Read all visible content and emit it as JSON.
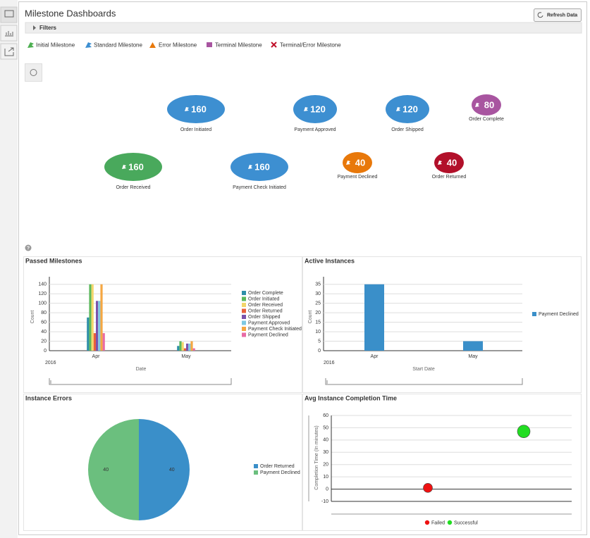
{
  "header": {
    "title": "Milestone Dashboards",
    "refresh_button": "Refresh Data",
    "filters": "Filters"
  },
  "milestone_legend": [
    {
      "label": "Initial Milestone",
      "color": "#4caf50"
    },
    {
      "label": "Standard Milestone",
      "color": "#3d8fd1"
    },
    {
      "label": "Error Milestone",
      "color": "#e8780a"
    },
    {
      "label": "Terminal Milestone",
      "color": "#a855a0"
    },
    {
      "label": "Terminal/Error Milestone",
      "color": "#c0102a"
    }
  ],
  "milestones": [
    {
      "label": "Order Initiated",
      "count": 160,
      "color": "#3d8fd1"
    },
    {
      "label": "Payment Approved",
      "count": 120,
      "color": "#3d8fd1"
    },
    {
      "label": "Order Shipped",
      "count": 120,
      "color": "#3d8fd1"
    },
    {
      "label": "Order Complete",
      "count": 80,
      "color": "#a855a0"
    },
    {
      "label": "Order Received",
      "count": 160,
      "color": "#49a95c"
    },
    {
      "label": "Payment Check Initiated",
      "count": 160,
      "color": "#3d8fd1"
    },
    {
      "label": "Payment Declined",
      "count": 40,
      "color": "#e8780a"
    },
    {
      "label": "Order Returned",
      "count": 40,
      "color": "#b2102a"
    }
  ],
  "help_icon": "?",
  "chart_data": [
    {
      "type": "bar",
      "title": "Passed Milestones",
      "categories": [
        "Apr",
        "May"
      ],
      "x_sublabel": "2016",
      "xlabel": "Date",
      "ylabel": "Count",
      "ylim": [
        0,
        150
      ],
      "yticks": [
        0,
        20,
        40,
        60,
        80,
        100,
        120,
        140
      ],
      "grid": true,
      "series": [
        {
          "name": "Order Complete",
          "color": "#2e8fa8",
          "values": [
            70,
            10
          ]
        },
        {
          "name": "Order Initiated",
          "color": "#5cb85c",
          "values": [
            140,
            20
          ]
        },
        {
          "name": "Order Received",
          "color": "#f3d66b",
          "values": [
            140,
            18
          ]
        },
        {
          "name": "Order Returned",
          "color": "#e8603c",
          "values": [
            37,
            5
          ]
        },
        {
          "name": "Order Shipped",
          "color": "#7b52ab",
          "values": [
            105,
            15
          ]
        },
        {
          "name": "Payment Approved",
          "color": "#7ec8e3",
          "values": [
            105,
            15
          ]
        },
        {
          "name": "Payment Check Initiated",
          "color": "#f5a742",
          "values": [
            140,
            20
          ]
        },
        {
          "name": "Payment Declined",
          "color": "#e86ba5",
          "values": [
            37,
            5
          ]
        }
      ]
    },
    {
      "type": "bar",
      "title": "Active Instances",
      "categories": [
        "Apr",
        "May"
      ],
      "x_sublabel": "2016",
      "xlabel": "Start Date",
      "ylabel": "Count",
      "ylim": [
        0,
        37.5
      ],
      "yticks": [
        0,
        5,
        10,
        15,
        20,
        25,
        30,
        35
      ],
      "grid": true,
      "series": [
        {
          "name": "Payment Declined",
          "color": "#3a8fc9",
          "values": [
            35,
            5
          ]
        }
      ]
    },
    {
      "type": "pie",
      "title": "Instance Errors",
      "categories": [
        "Order Returned",
        "Payment Declined"
      ],
      "values": [
        40,
        40
      ],
      "colors": [
        "#3a8fc9",
        "#6bbf7e"
      ]
    },
    {
      "type": "scatter",
      "title": "Avg Instance Completion Time",
      "ylabel": "Completion Time (In minutes)",
      "ylim": [
        -10,
        60
      ],
      "yticks": [
        -10,
        0,
        10,
        20,
        30,
        40,
        50,
        60
      ],
      "grid": true,
      "series": [
        {
          "name": "Failed",
          "color": "#ee1111",
          "values": [
            1
          ]
        },
        {
          "name": "Successful",
          "color": "#22dd22",
          "values": [
            47
          ]
        }
      ]
    }
  ]
}
